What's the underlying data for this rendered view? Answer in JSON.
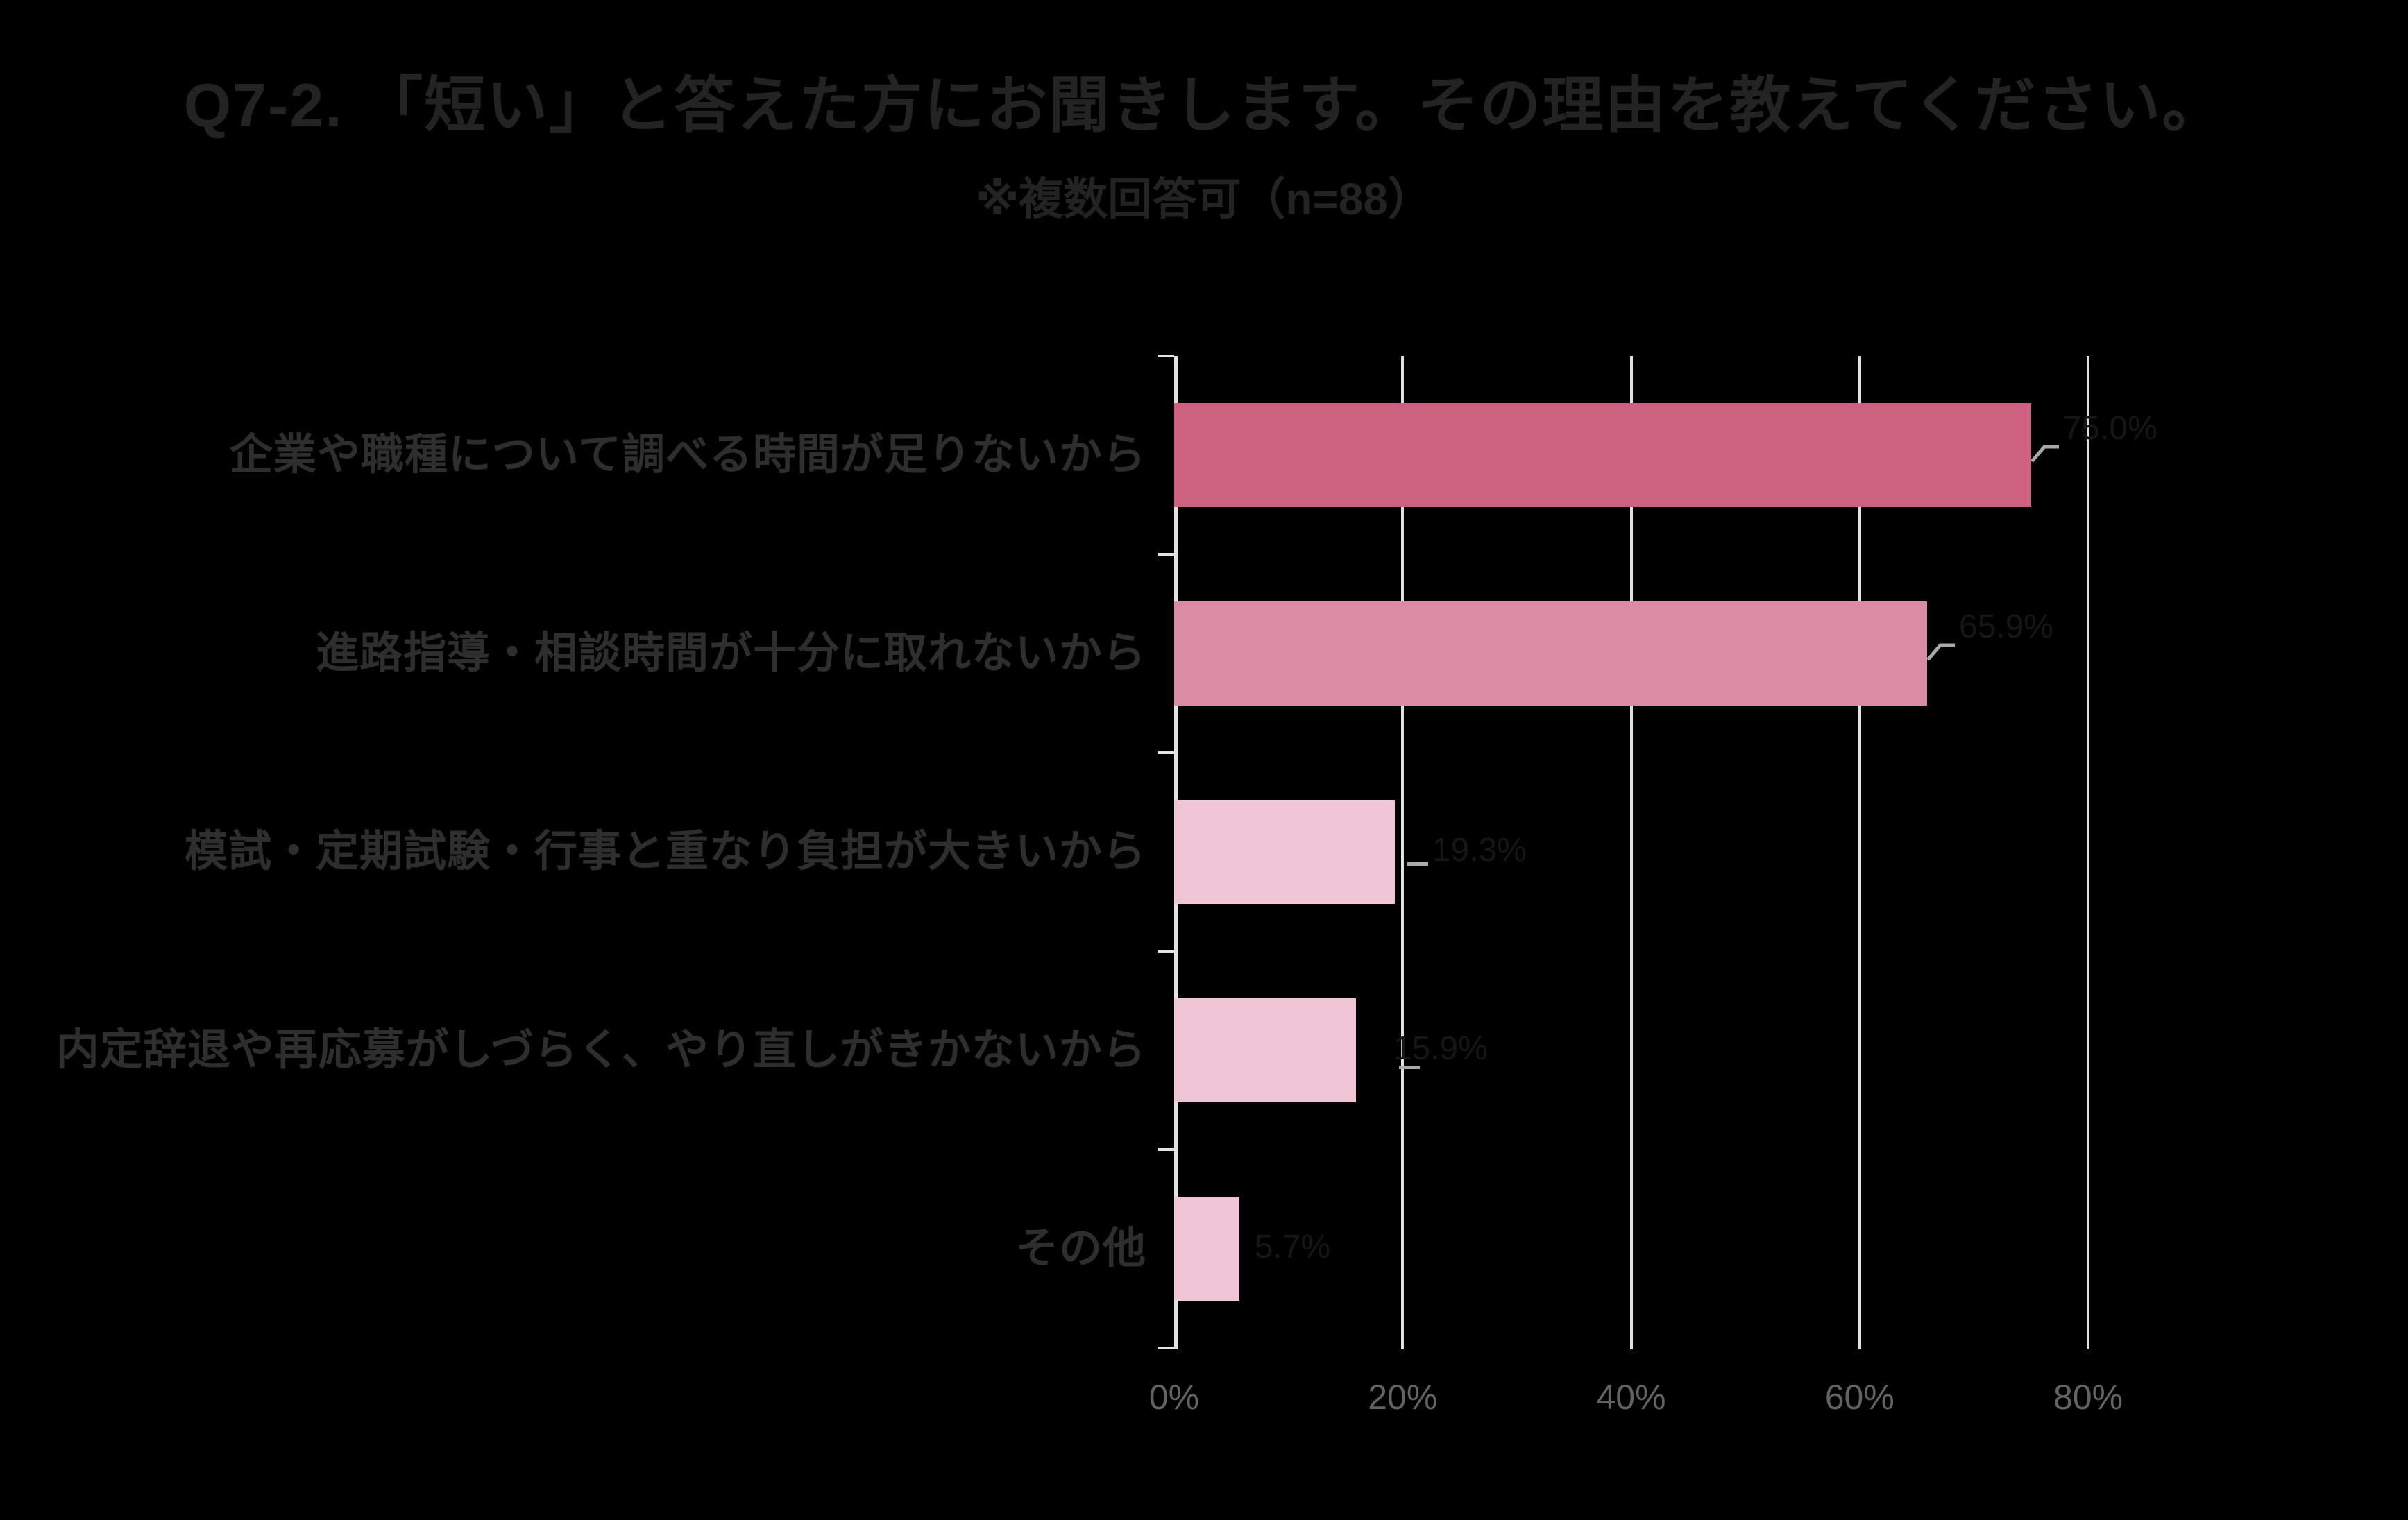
{
  "page": {
    "background_color": "#000000"
  },
  "header": {
    "title": "Q7-2. 「短い」と答えた方にお聞きします。その理由を教えてください。",
    "subtitle": "※複数回答可（n=88）"
  },
  "chart_data": {
    "type": "bar",
    "orientation": "horizontal",
    "title": "Q7-2. 「短い」と答えた方にお聞きします。その理由を教えてください。",
    "subtitle": "※複数回答可（n=88）",
    "sample_size": "n=88",
    "categories": [
      "企業や職種について調べる時間が足りないから",
      "進路指導・相談時間が十分に取れないから",
      "模試・定期試験・行事と重なり負担が大きいから",
      "内定辞退や再応募がしづらく、やり直しがきかないから",
      "その他"
    ],
    "values": [
      75.0,
      65.9,
      19.3,
      15.9,
      5.7
    ],
    "data_labels": [
      "75.0%",
      "65.9%",
      "19.3%",
      "15.9%",
      "5.7%"
    ],
    "bar_colors": [
      "#cd6280",
      "#db8ba3",
      "#f0c6d6",
      "#f0c6d6",
      "#f0c6d6"
    ],
    "leaders": [
      "hook",
      "hook",
      "dash",
      "dash",
      "none"
    ],
    "x_ticks": [
      "0%",
      "20%",
      "40%",
      "60%",
      "80%"
    ],
    "x_tick_values": [
      0,
      20,
      40,
      60,
      80
    ],
    "xlim": [
      0,
      89
    ],
    "ylabel": "",
    "xlabel": "",
    "grid": true,
    "legend": "none",
    "colors": {
      "gridline": "#e0e0e0",
      "axis": "#e3e3e3",
      "tick_label": "#636363",
      "category_label": "#2e2e2e",
      "title": "#232323",
      "data_label": "#161616",
      "leader": "#a9a9a9"
    }
  }
}
